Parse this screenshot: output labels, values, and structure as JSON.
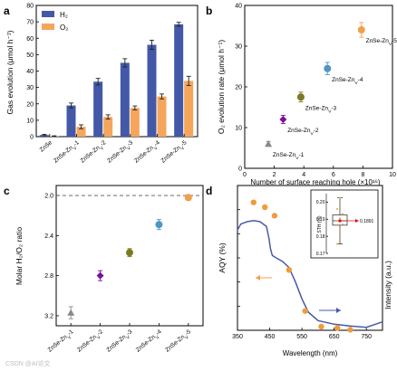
{
  "chart_data": [
    {
      "panel": "a",
      "type": "bar",
      "ylabel": "Gas evolution (μmol h⁻¹)",
      "ylim": [
        0,
        80
      ],
      "yticks": [
        0,
        10,
        20,
        30,
        40,
        50,
        60,
        70,
        80
      ],
      "categories": [
        "ZnSe",
        "ZnSe-ZnV-1",
        "ZnSe-ZnV-2",
        "ZnSe-ZnV-3",
        "ZnSe-ZnV-4",
        "ZnSe-ZnV-5"
      ],
      "series": [
        {
          "name": "H₂",
          "color": "#4458a8",
          "values": [
            1.0,
            19.0,
            33.5,
            45.0,
            56.0,
            68.5
          ],
          "errors": [
            0.4,
            1.5,
            2.0,
            2.5,
            2.8,
            1.2
          ]
        },
        {
          "name": "O₂",
          "color": "#f5a65b",
          "values": [
            0.3,
            6.0,
            12.0,
            17.5,
            24.5,
            34.0
          ],
          "errors": [
            0.2,
            1.2,
            1.3,
            1.2,
            1.5,
            2.8
          ]
        }
      ],
      "legend": "top-left"
    },
    {
      "panel": "b",
      "type": "scatter",
      "xlabel": "Number of surface reaching hole (×10¹⁶)",
      "ylabel": "O₂ evolution rate (μmol h⁻¹)",
      "xlim": [
        0,
        10
      ],
      "ylim": [
        0,
        40
      ],
      "xticks": [
        0,
        2,
        4,
        6,
        8,
        10
      ],
      "yticks": [
        0,
        10,
        20,
        30,
        40
      ],
      "points": [
        {
          "label": "ZnSe-ZnV-1",
          "x": 1.6,
          "y": 6.0,
          "yerr": 0.6,
          "color": "#888888",
          "marker": "triangle"
        },
        {
          "label": "ZnSe-ZnV-2",
          "x": 2.6,
          "y": 12.0,
          "yerr": 1.0,
          "color": "#7b0f9a",
          "marker": "diamond"
        },
        {
          "label": "ZnSe-ZnV-3",
          "x": 3.8,
          "y": 17.5,
          "yerr": 1.2,
          "color": "#7a7a20",
          "marker": "circle"
        },
        {
          "label": "ZnSe-ZnV-4",
          "x": 5.6,
          "y": 24.5,
          "yerr": 1.5,
          "color": "#4f96c8",
          "marker": "circle"
        },
        {
          "label": "ZnSe-ZnV-5",
          "x": 7.9,
          "y": 34.0,
          "yerr": 1.8,
          "color": "#f0a04a",
          "marker": "circle"
        }
      ]
    },
    {
      "panel": "c",
      "type": "scatter",
      "ylabel": "Molar H₂/O₂ ratio",
      "ylim": [
        3.3,
        1.9
      ],
      "yticks": [
        2.0,
        2.4,
        2.8,
        3.2
      ],
      "reference_line": 2.0,
      "categories": [
        "ZnSe-ZnV-1",
        "ZnSe-ZnV-2",
        "ZnSe-ZnV-3",
        "ZnSe-ZnV-4",
        "ZnSe-ZnV-5"
      ],
      "values": [
        3.17,
        2.8,
        2.57,
        2.29,
        2.02
      ],
      "errors": [
        0.06,
        0.05,
        0.04,
        0.05,
        0.03
      ],
      "colors": [
        "#888888",
        "#7b0f9a",
        "#7a7a20",
        "#4f96c8",
        "#f0a04a"
      ],
      "markers": [
        "triangle",
        "diamond",
        "circle",
        "circle",
        "circle"
      ]
    },
    {
      "panel": "d",
      "type": "line",
      "xlabel": "Wavelength (nm)",
      "ylabel_left": "AQY (%)",
      "ylabel_right": "Intensity (a.u.)",
      "xlim": [
        350,
        800
      ],
      "xticks": [
        350,
        450,
        550,
        650,
        750
      ],
      "xtick_labels": [
        "350",
        "450",
        "550",
        "650",
        "750"
      ],
      "xtick_labels_shown": [
        "350",
        "450",
        "550",
        "650",
        "750"
      ],
      "ylim": [
        0,
        12
      ],
      "yticks": [
        0,
        2,
        4,
        6,
        8,
        10,
        12
      ],
      "aqy_points": {
        "color": "#f09a3e",
        "x": [
          400,
          435,
          465,
          510,
          560,
          610,
          660,
          700
        ],
        "y": [
          10.6,
          10.2,
          9.5,
          5.0,
          1.6,
          0.3,
          0.2,
          0.05
        ]
      },
      "absorption_curve": {
        "color": "#4a5aa8",
        "x": [
          350,
          360,
          370,
          380,
          400,
          420,
          440,
          448,
          452,
          458,
          470,
          490,
          510,
          530,
          550,
          570,
          600,
          650,
          700,
          750,
          800
        ],
        "y": [
          8.3,
          8.8,
          8.9,
          9.0,
          9.1,
          9.0,
          8.6,
          7.6,
          6.8,
          6.2,
          6.0,
          5.7,
          5.2,
          4.0,
          2.6,
          1.5,
          0.8,
          0.5,
          0.35,
          0.25,
          0.7
        ]
      },
      "inset": {
        "ylabel": "STH (%)",
        "ylim": [
          0.17,
          0.205
        ],
        "yticks": [
          0.17,
          0.18,
          0.19,
          0.2
        ],
        "ytick_labels": [
          "0.17",
          "0.18",
          "0.19",
          "0.20"
        ],
        "mean_label": "0.1891",
        "mean": 0.1891,
        "box": {
          "q1": 0.1865,
          "median": 0.1891,
          "q3": 0.1925,
          "min": 0.1755,
          "max": 0.2025
        },
        "points": [
          0.1755,
          0.184,
          0.187,
          0.189,
          0.1905,
          0.193,
          0.196,
          0.2025
        ]
      }
    }
  ],
  "labels": {
    "panel_a": "a",
    "panel_b": "b",
    "panel_c": "c",
    "panel_d": "d",
    "legend_h2": "H₂",
    "legend_o2": "O₂",
    "watermark": "CSDN @AI论文"
  }
}
